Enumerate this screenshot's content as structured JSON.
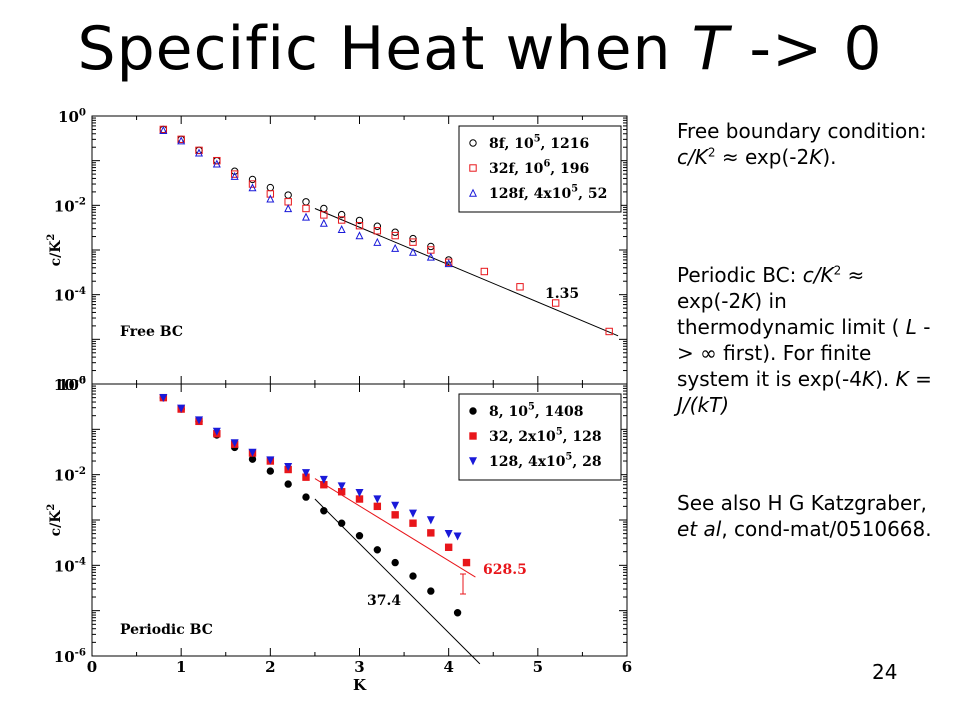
{
  "slide": {
    "title_prefix": "Specific Heat when ",
    "title_var": "T",
    "title_suffix": " -> 0",
    "page_number": "24"
  },
  "notes": {
    "n1": {
      "a": "Free boundary condition: ",
      "b": "c/K",
      "c": "2",
      "d": " ≈ exp(-2",
      "e": "K",
      "f": ")."
    },
    "n2": {
      "a": "Periodic BC: ",
      "b": "c/K",
      "c": "2",
      "d": " ≈ exp(-2",
      "e": "K",
      "f": ") in thermodynamic limit ( ",
      "g": "L",
      "h": " -> ∞ first).  For finite system it is exp(-4",
      "i": "K",
      "j": ").  ",
      "k": "K",
      "l": " = ",
      "m": "J/(kT)"
    },
    "n3": {
      "a": "See also H G Katzgraber, ",
      "b": "et al",
      "c": ", cond-mat/0510668."
    }
  },
  "chart_data": [
    {
      "type": "scatter",
      "panel": "Free BC",
      "xlabel": "",
      "ylabel": "c/K^2",
      "y_scale": "log",
      "xlim": [
        0,
        6
      ],
      "ylim": [
        1e-06,
        1
      ],
      "x_ticks": [
        "0",
        "1",
        "2",
        "3",
        "4",
        "5",
        "6"
      ],
      "y_ticks": [
        "10^0",
        "10^-2",
        "10^-4",
        "10^-6"
      ],
      "legend_position": "top-right",
      "series": [
        {
          "name": "8f, 10^5, 1216",
          "marker": "circle-open",
          "color": "#000000",
          "x": [
            0.8,
            1.0,
            1.2,
            1.4,
            1.6,
            1.8,
            2.0,
            2.2,
            2.4,
            2.6,
            2.8,
            3.0,
            3.2,
            3.4,
            3.6,
            3.8,
            4.0
          ],
          "y": [
            0.5,
            0.3,
            0.17,
            0.1,
            0.058,
            0.038,
            0.025,
            0.017,
            0.012,
            0.0085,
            0.0062,
            0.0046,
            0.0034,
            0.0025,
            0.0018,
            0.0012,
            0.0006
          ]
        },
        {
          "name": "32f, 10^6, 196",
          "marker": "square-open",
          "color": "#e8161b",
          "x": [
            0.8,
            1.0,
            1.2,
            1.4,
            1.6,
            1.8,
            2.0,
            2.2,
            2.4,
            2.6,
            2.8,
            3.0,
            3.2,
            3.4,
            3.6,
            3.8,
            4.0,
            4.4,
            4.8,
            5.2,
            5.8
          ],
          "y": [
            0.5,
            0.3,
            0.17,
            0.1,
            0.05,
            0.03,
            0.018,
            0.012,
            0.0085,
            0.0061,
            0.0047,
            0.0035,
            0.0027,
            0.0021,
            0.0015,
            0.001,
            0.00053,
            0.00033,
            0.00015,
            6.5e-05,
            1.5e-05
          ]
        },
        {
          "name": "128f, 4x10^5, 52",
          "marker": "triangle-open",
          "color": "#1a1ad9",
          "x": [
            0.8,
            1.0,
            1.2,
            1.4,
            1.6,
            1.8,
            2.0,
            2.2,
            2.4,
            2.6,
            2.8,
            3.0,
            3.2,
            3.4,
            3.6,
            3.8,
            4.0
          ],
          "y": [
            0.48,
            0.28,
            0.15,
            0.085,
            0.045,
            0.025,
            0.014,
            0.0085,
            0.0055,
            0.004,
            0.0029,
            0.0021,
            0.0015,
            0.0011,
            0.0009,
            0.0007,
            0.0005
          ]
        }
      ],
      "fit_lines": [
        {
          "x": [
            2.5,
            5.9
          ],
          "y": [
            0.0085,
            1.2e-05
          ],
          "label": "1.35"
        }
      ],
      "annotation": "Free BC"
    },
    {
      "type": "scatter",
      "panel": "Periodic BC",
      "xlabel": "K",
      "ylabel": "c/K^2",
      "y_scale": "log",
      "xlim": [
        0,
        6
      ],
      "ylim": [
        1e-06,
        1
      ],
      "x_ticks": [
        "0",
        "1",
        "2",
        "3",
        "4",
        "5",
        "6"
      ],
      "y_ticks": [
        "10^0",
        "10^-2",
        "10^-4",
        "10^-6"
      ],
      "legend_position": "top-right",
      "series": [
        {
          "name": "8, 10^5, 1408",
          "marker": "circle-filled",
          "color": "#000000",
          "x": [
            0.8,
            1.0,
            1.2,
            1.4,
            1.6,
            1.8,
            2.0,
            2.2,
            2.4,
            2.6,
            2.8,
            3.0,
            3.2,
            3.4,
            3.6,
            3.8,
            4.1
          ],
          "y": [
            0.5,
            0.28,
            0.15,
            0.075,
            0.04,
            0.022,
            0.012,
            0.0062,
            0.0032,
            0.0016,
            0.00085,
            0.00045,
            0.00022,
            0.000115,
            5.8e-05,
            2.7e-05,
            9e-06
          ]
        },
        {
          "name": "32, 2x10^5, 128",
          "marker": "square-filled",
          "color": "#e8161b",
          "x": [
            0.8,
            1.0,
            1.2,
            1.4,
            1.6,
            1.8,
            2.0,
            2.2,
            2.4,
            2.6,
            2.8,
            3.0,
            3.2,
            3.4,
            3.6,
            3.8,
            4.0,
            4.2
          ],
          "y": [
            0.5,
            0.28,
            0.15,
            0.08,
            0.047,
            0.03,
            0.02,
            0.013,
            0.0088,
            0.006,
            0.0042,
            0.0029,
            0.002,
            0.0013,
            0.00085,
            0.00052,
            0.00025,
            0.000115
          ]
        },
        {
          "name": "128, 4x10^5, 28",
          "marker": "triangle-down-filled",
          "color": "#1a1ad9",
          "x": [
            0.8,
            1.0,
            1.2,
            1.4,
            1.6,
            1.8,
            2.0,
            2.2,
            2.4,
            2.6,
            2.8,
            3.0,
            3.2,
            3.4,
            3.6,
            3.8,
            4.0,
            4.1
          ],
          "y": [
            0.5,
            0.29,
            0.16,
            0.09,
            0.05,
            0.031,
            0.021,
            0.015,
            0.011,
            0.0078,
            0.0056,
            0.004,
            0.0029,
            0.0021,
            0.0014,
            0.001,
            0.0005,
            0.00044
          ]
        }
      ],
      "fit_lines": [
        {
          "x": [
            2.5,
            4.3
          ],
          "y": [
            0.0082,
            5.5e-05
          ],
          "color": "#e8161b",
          "label": "628.5"
        },
        {
          "x": [
            2.5,
            4.35
          ],
          "y": [
            0.0029,
            6.7e-07
          ],
          "color": "#000000",
          "label": "37.4"
        }
      ],
      "annotation": "Periodic BC"
    }
  ]
}
